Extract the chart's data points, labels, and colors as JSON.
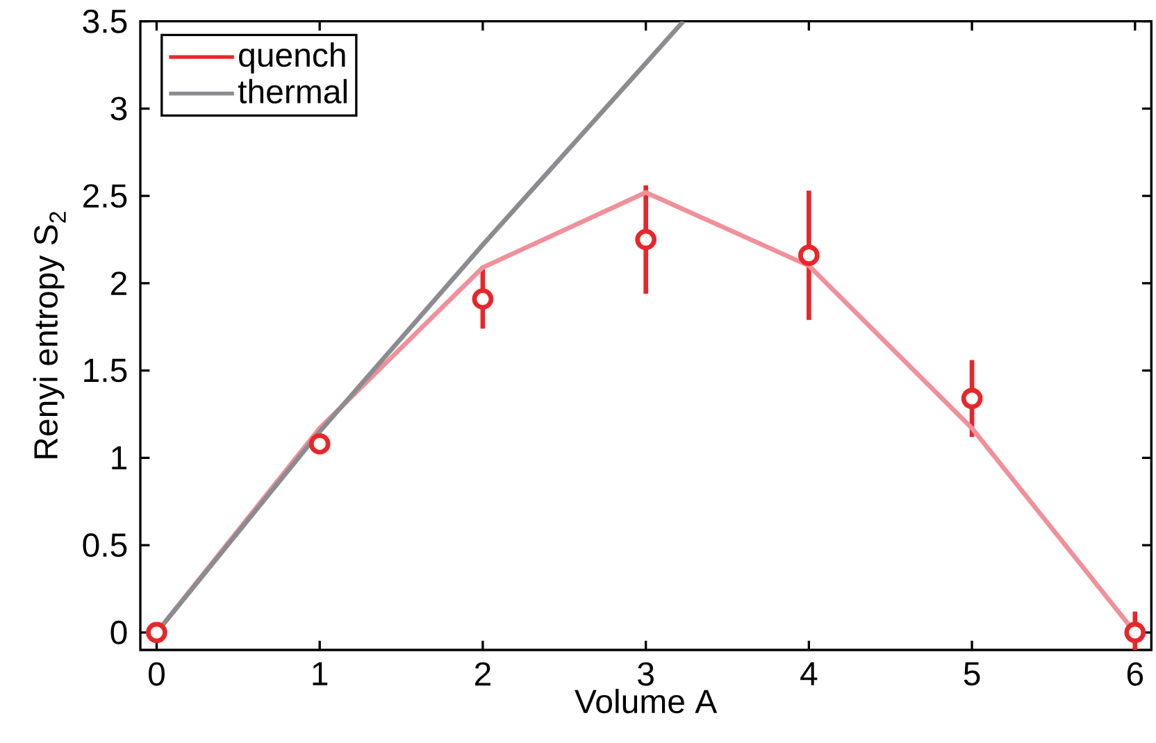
{
  "chart_data": {
    "type": "line",
    "xlabel": "Volume A",
    "ylabel": "Renyi entropy S$_{2}$",
    "xlim": [
      -0.1,
      6.1
    ],
    "ylim": [
      -0.1,
      3.5
    ],
    "xticks": [
      0,
      1,
      2,
      3,
      4,
      5,
      6
    ],
    "yticks": [
      0,
      0.5,
      1,
      1.5,
      2,
      2.5,
      3,
      3.5
    ],
    "grid": false,
    "legend": "top left",
    "series": [
      {
        "name": "quench",
        "type": "scatter",
        "color": "#e8262a",
        "marker": "circle",
        "x": [
          0,
          1,
          2,
          3,
          4,
          5,
          6
        ],
        "values": [
          0,
          1.08,
          1.91,
          2.25,
          2.16,
          1.34,
          0
        ],
        "errors": [
          null,
          null,
          0.17,
          0.31,
          0.37,
          0.22,
          [
            -0.1,
            0.12
          ]
        ]
      },
      {
        "type": "line",
        "color": "#f0909a",
        "marker": "none",
        "x": [
          0,
          1,
          2,
          3,
          4,
          5,
          6
        ],
        "values": [
          0,
          1.17,
          2.09,
          2.52,
          2.1,
          1.17,
          0
        ]
      },
      {
        "name": "thermal",
        "color": "#8c8c90",
        "marker": "none",
        "x": [
          0,
          1,
          2,
          3,
          3.23
        ],
        "values": [
          0,
          1.15,
          2.22,
          3.26,
          3.5
        ]
      }
    ]
  }
}
